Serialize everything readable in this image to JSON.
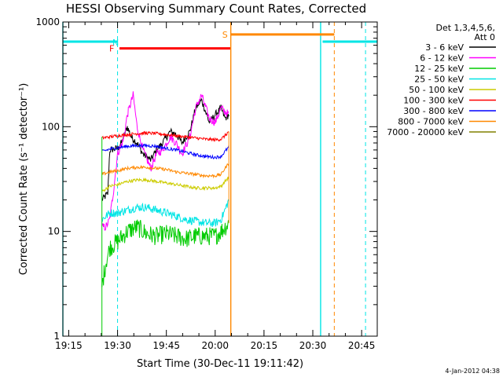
{
  "chart_data": {
    "type": "line",
    "title": "HESSI Observing Summary Count Rates, Corrected",
    "xlabel": "Start Time (30-Dec-11 19:11:42)",
    "ylabel": "Corrected Count Rate (s⁻¹ detector⁻¹)",
    "y_scale": "log",
    "ylim": [
      1,
      1000
    ],
    "xlim_minutes": [
      19.22,
      20.83
    ],
    "x_ticks": [
      {
        "label": "19:15",
        "t": 19.25
      },
      {
        "label": "19:30",
        "t": 19.5
      },
      {
        "label": "19:45",
        "t": 19.75
      },
      {
        "label": "20:00",
        "t": 20.0
      },
      {
        "label": "20:15",
        "t": 20.25
      },
      {
        "label": "20:30",
        "t": 20.5
      },
      {
        "label": "20:45",
        "t": 20.75
      }
    ],
    "y_ticks": [
      {
        "label": "1",
        "v": 1
      },
      {
        "label": "10",
        "v": 10
      },
      {
        "label": "100",
        "v": 100
      },
      {
        "label": "1000",
        "v": 1000
      }
    ],
    "legend": {
      "position": "right",
      "header_line1": "Det 1,3,4,5,6,",
      "header_line2": "Att 0",
      "entries": [
        {
          "label": "3 - 6 keV",
          "color": "#000000"
        },
        {
          "label": "6 - 12 keV",
          "color": "#ff00ff"
        },
        {
          "label": "12 - 25 keV",
          "color": "#00cc00"
        },
        {
          "label": "25 - 50 keV",
          "color": "#00e5e5"
        },
        {
          "label": "50 - 100 keV",
          "color": "#cccc00"
        },
        {
          "label": "100 - 300 keV",
          "color": "#ff0000"
        },
        {
          "label": "300 - 800 keV",
          "color": "#0000ff"
        },
        {
          "label": "800 - 7000 keV",
          "color": "#ff8800"
        },
        {
          "label": "7000 - 20000 keV",
          "color": "#808000"
        }
      ]
    },
    "data_start": 19.42,
    "data_end": 20.07,
    "series": [
      {
        "name": "3 - 6 keV",
        "color": "#000000",
        "points": [
          [
            19.42,
            20
          ],
          [
            19.45,
            23
          ],
          [
            19.46,
            60
          ],
          [
            19.5,
            62
          ],
          [
            19.52,
            70
          ],
          [
            19.55,
            100
          ],
          [
            19.57,
            80
          ],
          [
            19.6,
            70
          ],
          [
            19.63,
            55
          ],
          [
            19.67,
            48
          ],
          [
            19.7,
            60
          ],
          [
            19.73,
            70
          ],
          [
            19.77,
            90
          ],
          [
            19.8,
            85
          ],
          [
            19.83,
            70
          ],
          [
            19.87,
            90
          ],
          [
            19.9,
            150
          ],
          [
            19.93,
            180
          ],
          [
            19.97,
            110
          ],
          [
            20.0,
            130
          ],
          [
            20.03,
            150
          ],
          [
            20.05,
            120
          ],
          [
            20.07,
            130
          ]
        ]
      },
      {
        "name": "6 - 12 keV",
        "color": "#ff00ff",
        "points": [
          [
            19.44,
            11
          ],
          [
            19.46,
            13
          ],
          [
            19.48,
            25
          ],
          [
            19.5,
            55
          ],
          [
            19.53,
            75
          ],
          [
            19.55,
            130
          ],
          [
            19.58,
            200
          ],
          [
            19.6,
            100
          ],
          [
            19.63,
            60
          ],
          [
            19.67,
            40
          ],
          [
            19.7,
            55
          ],
          [
            19.73,
            60
          ],
          [
            19.77,
            80
          ],
          [
            19.8,
            70
          ],
          [
            19.83,
            55
          ],
          [
            19.87,
            80
          ],
          [
            19.9,
            150
          ],
          [
            19.93,
            200
          ],
          [
            19.97,
            120
          ],
          [
            20.0,
            110
          ],
          [
            20.03,
            150
          ],
          [
            20.07,
            130
          ]
        ]
      },
      {
        "name": "12 - 25 keV",
        "color": "#00cc00",
        "points": [
          [
            19.42,
            3
          ],
          [
            19.44,
            5
          ],
          [
            19.46,
            7
          ],
          [
            19.5,
            8
          ],
          [
            19.55,
            10
          ],
          [
            19.6,
            11
          ],
          [
            19.65,
            9.5
          ],
          [
            19.7,
            9
          ],
          [
            19.75,
            9.5
          ],
          [
            19.8,
            9
          ],
          [
            19.85,
            8.5
          ],
          [
            19.9,
            9
          ],
          [
            19.95,
            9
          ],
          [
            20.0,
            9
          ],
          [
            20.03,
            10
          ],
          [
            20.05,
            11
          ],
          [
            20.07,
            12
          ]
        ]
      },
      {
        "name": "25 - 50 keV",
        "color": "#00e5e5",
        "points": [
          [
            19.42,
            13
          ],
          [
            19.46,
            15
          ],
          [
            19.5,
            15
          ],
          [
            19.55,
            16
          ],
          [
            19.6,
            17
          ],
          [
            19.65,
            17
          ],
          [
            19.7,
            16
          ],
          [
            19.75,
            15
          ],
          [
            19.8,
            14
          ],
          [
            19.85,
            13
          ],
          [
            19.9,
            12.5
          ],
          [
            19.95,
            12
          ],
          [
            20.0,
            12
          ],
          [
            20.03,
            13
          ],
          [
            20.05,
            16
          ],
          [
            20.07,
            20
          ]
        ]
      },
      {
        "name": "50 - 100 keV",
        "color": "#cccc00",
        "points": [
          [
            19.42,
            24
          ],
          [
            19.46,
            27
          ],
          [
            19.5,
            28
          ],
          [
            19.55,
            30
          ],
          [
            19.6,
            31
          ],
          [
            19.65,
            31
          ],
          [
            19.7,
            30
          ],
          [
            19.75,
            29
          ],
          [
            19.8,
            28
          ],
          [
            19.85,
            27
          ],
          [
            19.9,
            26
          ],
          [
            19.95,
            26
          ],
          [
            20.0,
            26
          ],
          [
            20.03,
            27
          ],
          [
            20.05,
            30
          ],
          [
            20.07,
            33
          ]
        ]
      },
      {
        "name": "100 - 300 keV",
        "color": "#ff0000",
        "points": [
          [
            19.42,
            78
          ],
          [
            19.46,
            80
          ],
          [
            19.5,
            82
          ],
          [
            19.55,
            84
          ],
          [
            19.6,
            86
          ],
          [
            19.65,
            87
          ],
          [
            19.7,
            86
          ],
          [
            19.75,
            84
          ],
          [
            19.8,
            82
          ],
          [
            19.85,
            80
          ],
          [
            19.9,
            78
          ],
          [
            19.95,
            76
          ],
          [
            20.0,
            75
          ],
          [
            20.03,
            76
          ],
          [
            20.05,
            82
          ],
          [
            20.07,
            90
          ]
        ]
      },
      {
        "name": "300 - 800 keV",
        "color": "#0000ff",
        "points": [
          [
            19.42,
            58
          ],
          [
            19.46,
            61
          ],
          [
            19.5,
            63
          ],
          [
            19.55,
            65
          ],
          [
            19.6,
            66
          ],
          [
            19.65,
            66
          ],
          [
            19.7,
            65
          ],
          [
            19.75,
            62
          ],
          [
            19.8,
            60
          ],
          [
            19.85,
            57
          ],
          [
            19.9,
            54
          ],
          [
            19.95,
            52
          ],
          [
            20.0,
            51
          ],
          [
            20.03,
            52
          ],
          [
            20.05,
            58
          ],
          [
            20.07,
            64
          ]
        ]
      },
      {
        "name": "800 - 7000 keV",
        "color": "#ff8800",
        "points": [
          [
            19.42,
            35
          ],
          [
            19.46,
            37
          ],
          [
            19.5,
            38
          ],
          [
            19.55,
            40
          ],
          [
            19.6,
            41
          ],
          [
            19.65,
            41
          ],
          [
            19.7,
            40
          ],
          [
            19.75,
            39
          ],
          [
            19.8,
            37
          ],
          [
            19.85,
            36
          ],
          [
            19.9,
            35
          ],
          [
            19.95,
            34
          ],
          [
            20.0,
            34
          ],
          [
            20.03,
            35
          ],
          [
            20.05,
            40
          ],
          [
            20.07,
            45
          ]
        ]
      }
    ],
    "flags": [
      {
        "letter": "N",
        "color": "#00e5e5",
        "label_t": 19.49,
        "label_v": 640,
        "segments": [
          [
            19.22,
            19.5,
            650
          ],
          [
            20.55,
            20.83,
            650
          ]
        ],
        "dashed_t": [
          19.5,
          20.77
        ],
        "solid_t": [
          19.22,
          20.54
        ]
      },
      {
        "letter": "F",
        "color": "#ff0000",
        "label_t": 19.47,
        "label_v": 560,
        "segments": [
          [
            19.51,
            20.08,
            560
          ]
        ]
      },
      {
        "letter": "S",
        "color": "#ff8800",
        "label_t": 20.05,
        "label_v": 760,
        "segments": [
          [
            20.08,
            20.61,
            760
          ]
        ],
        "dashed_t": [
          20.61
        ],
        "solid_t": [
          20.08
        ]
      }
    ]
  },
  "timestamp": "4-Jan-2012 04:38"
}
